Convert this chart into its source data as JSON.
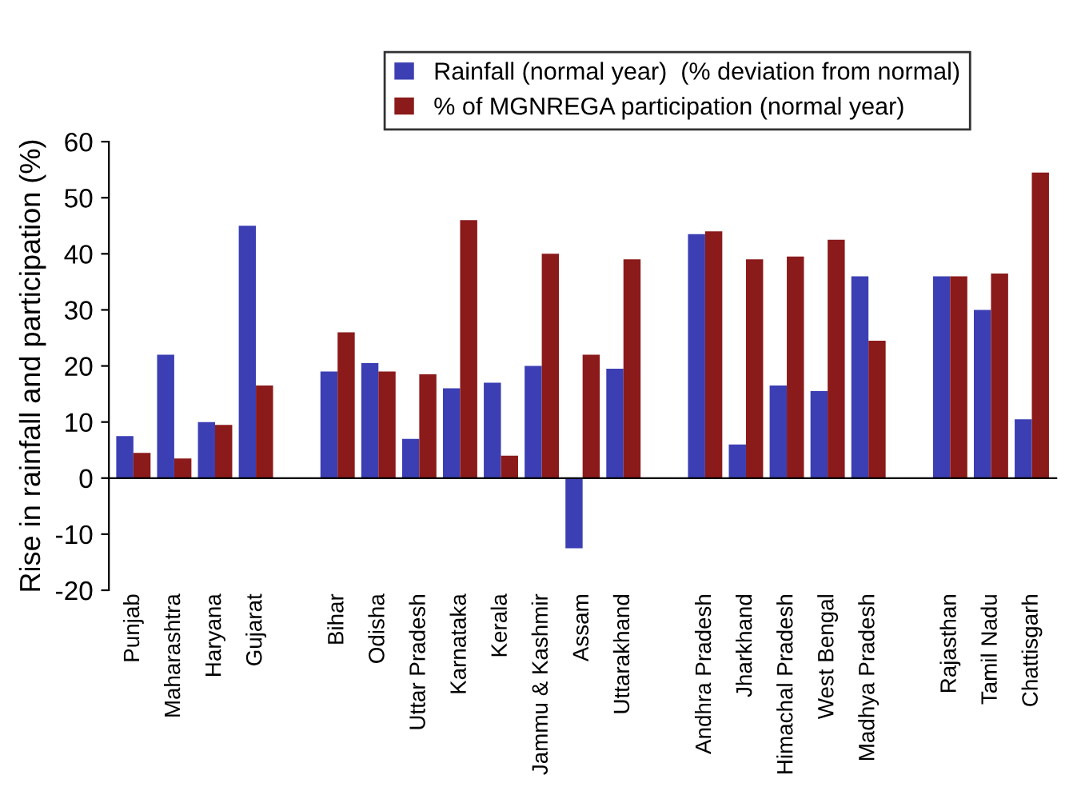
{
  "chart_data": {
    "type": "bar",
    "ylabel": "Rise in rainfall and participation (%)",
    "categories": [
      "Punjab",
      "Maharashtra",
      "Haryana",
      "Gujarat",
      null,
      "Bihar",
      "Odisha",
      "Uttar Pradesh",
      "Karnataka",
      "Kerala",
      "Jammu & Kashmir",
      "Assam",
      "Uttarakhand",
      null,
      "Andhra Pradesh",
      "Jharkhand",
      "Himachal Pradesh",
      "West Bengal",
      "Madhya Pradesh",
      null,
      "Rajasthan",
      "Tamil Nadu",
      "Chattisgarh"
    ],
    "series": [
      {
        "name": "Rainfall (normal year)  (% deviation from normal)",
        "color": "#3b3fb3",
        "values": [
          7.5,
          22,
          10,
          45,
          null,
          19,
          20.5,
          7,
          16,
          17,
          20,
          -12.5,
          19.5,
          null,
          43.5,
          6,
          16.5,
          15.5,
          36,
          null,
          36,
          30,
          10.5
        ]
      },
      {
        "name": "% of MGNREGA participation (normal year)",
        "color": "#8b1a1a",
        "values": [
          4.5,
          3.5,
          9.5,
          16.5,
          null,
          26,
          19,
          18.5,
          46,
          4,
          40,
          22,
          39,
          null,
          44,
          39,
          39.5,
          42.5,
          24.5,
          null,
          36,
          36.5,
          54.5
        ]
      }
    ],
    "ylim": [
      -20,
      60
    ],
    "yticks": [
      -20,
      -10,
      0,
      10,
      20,
      30,
      40,
      50,
      60
    ],
    "legend": "top"
  }
}
